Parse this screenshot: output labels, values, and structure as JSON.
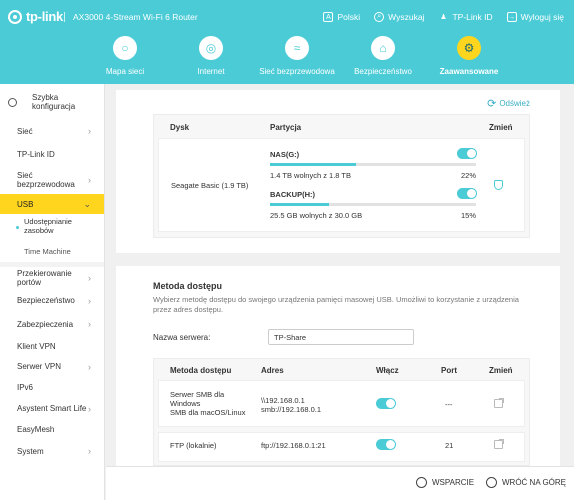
{
  "header": {
    "brand": "tp-link",
    "model": "AX3000 4-Stream Wi-Fi 6 Router",
    "links": [
      {
        "label": "Polski",
        "icon": "language-icon"
      },
      {
        "label": "Wyszukaj",
        "icon": "search-icon"
      },
      {
        "label": "TP-Link ID",
        "icon": "user-icon"
      },
      {
        "label": "Wyloguj się",
        "icon": "logout-icon"
      }
    ],
    "nav": [
      {
        "label": "Mapa sieci",
        "icon": "network-map-icon"
      },
      {
        "label": "Internet",
        "icon": "globe-icon"
      },
      {
        "label": "Sieć bezprzewodowa",
        "icon": "wifi-icon"
      },
      {
        "label": "Bezpieczeństwo",
        "icon": "shield-icon"
      },
      {
        "label": "Zaawansowane",
        "icon": "gear-icon",
        "active": true
      }
    ]
  },
  "sidebar": {
    "quick": "Szybka konfiguracja",
    "items": [
      {
        "label": "Sieć"
      },
      {
        "label": "TP-Link ID"
      },
      {
        "label": "Sieć bezprzewodowa"
      },
      {
        "label": "USB",
        "active": true
      },
      {
        "label": "Przekierowanie portów"
      },
      {
        "label": "Bezpieczeństwo"
      },
      {
        "label": "Zabezpieczenia"
      },
      {
        "label": "Klient VPN"
      },
      {
        "label": "Serwer VPN"
      },
      {
        "label": "IPv6"
      },
      {
        "label": "Asystent Smart Life"
      },
      {
        "label": "EasyMesh"
      },
      {
        "label": "System"
      }
    ],
    "usb_sub": [
      "Udostępnianie zasobów",
      "Time Machine"
    ]
  },
  "refresh": "Odśwież",
  "disk_table": {
    "headers": [
      "Dysk",
      "Partycja",
      "Zmień"
    ],
    "disk": "Seagate   Basic (1.9 TB)",
    "partitions": [
      {
        "name": "NAS(G:)",
        "free": "1.4 TB wolnych z 1.8 TB",
        "percent": "22%",
        "used_fraction": 0.22
      },
      {
        "name": "BACKUP(H:)",
        "free": "25.5 GB wolnych z 30.0 GB",
        "percent": "15%",
        "used_fraction": 0.15
      }
    ]
  },
  "access": {
    "title": "Metoda dostępu",
    "desc": "Wybierz metodę dostępu do swojego urządzenia pamięci masowej USB. Umożliwi to korzystanie z urządzenia przez adres dostępu.",
    "server_label": "Nazwa serwera:",
    "server_value": "TP-Share",
    "headers": [
      "Metoda dostępu",
      "Adres",
      "Włącz",
      "Port",
      "Zmień"
    ],
    "rows": [
      {
        "method_lines": [
          "Serwer SMB dla",
          "Windows",
          "SMB dla macOS/Linux"
        ],
        "address_lines": [
          "\\\\192.168.0.1",
          "smb://192.168.0.1"
        ],
        "port": "---"
      },
      {
        "method_lines": [
          "FTP (lokalnie)"
        ],
        "address_lines": [
          "ftp://192.168.0.1:21"
        ],
        "port": "21"
      }
    ]
  },
  "footer": {
    "support": "WSPARCIE",
    "top": "WRÓĆ NA GÓRĘ"
  },
  "colors": {
    "accent": "#4acbd6",
    "active": "#ffd61d"
  }
}
